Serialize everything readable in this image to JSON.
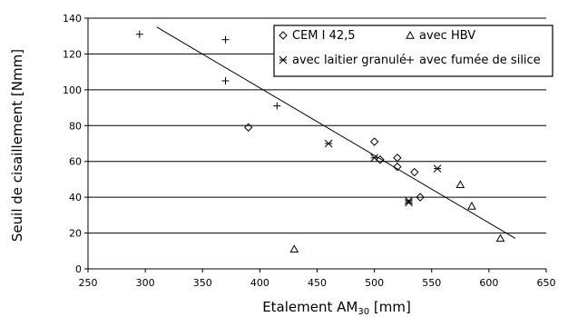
{
  "chart_data": {
    "type": "scatter",
    "xlabel_main": "Etalement AM",
    "xlabel_sub": "30",
    "xlabel_unit": " [mm]",
    "ylabel": "Seuil de cisaillement [Nmm]",
    "xlim": [
      250,
      650
    ],
    "ylim": [
      0,
      140
    ],
    "xticks": [
      250,
      300,
      350,
      400,
      450,
      500,
      550,
      600,
      650
    ],
    "yticks": [
      0,
      20,
      40,
      60,
      80,
      100,
      120,
      140
    ],
    "grid": "horizontal",
    "legend_position": "top-right",
    "series": [
      {
        "name": "CEM I 42,5",
        "marker": "diamond",
        "points": [
          [
            390,
            79
          ],
          [
            500,
            71
          ],
          [
            505,
            61
          ],
          [
            520,
            62
          ],
          [
            520,
            57
          ],
          [
            535,
            54
          ],
          [
            540,
            40
          ]
        ]
      },
      {
        "name": "avec HBV",
        "marker": "triangle",
        "points": [
          [
            430,
            11
          ],
          [
            575,
            47
          ],
          [
            585,
            35
          ],
          [
            610,
            17
          ]
        ]
      },
      {
        "name": "avec laitier granulé",
        "marker": "asterisk",
        "points": [
          [
            460,
            70
          ],
          [
            500,
            62
          ],
          [
            530,
            38
          ],
          [
            530,
            37
          ],
          [
            555,
            56
          ]
        ]
      },
      {
        "name": "avec fumée de silice",
        "marker": "plus",
        "points": [
          [
            295,
            131
          ],
          [
            370,
            128
          ],
          [
            370,
            105
          ],
          [
            415,
            91
          ]
        ]
      }
    ],
    "trendline": {
      "x": [
        310,
        623
      ],
      "y": [
        135,
        17
      ]
    }
  }
}
